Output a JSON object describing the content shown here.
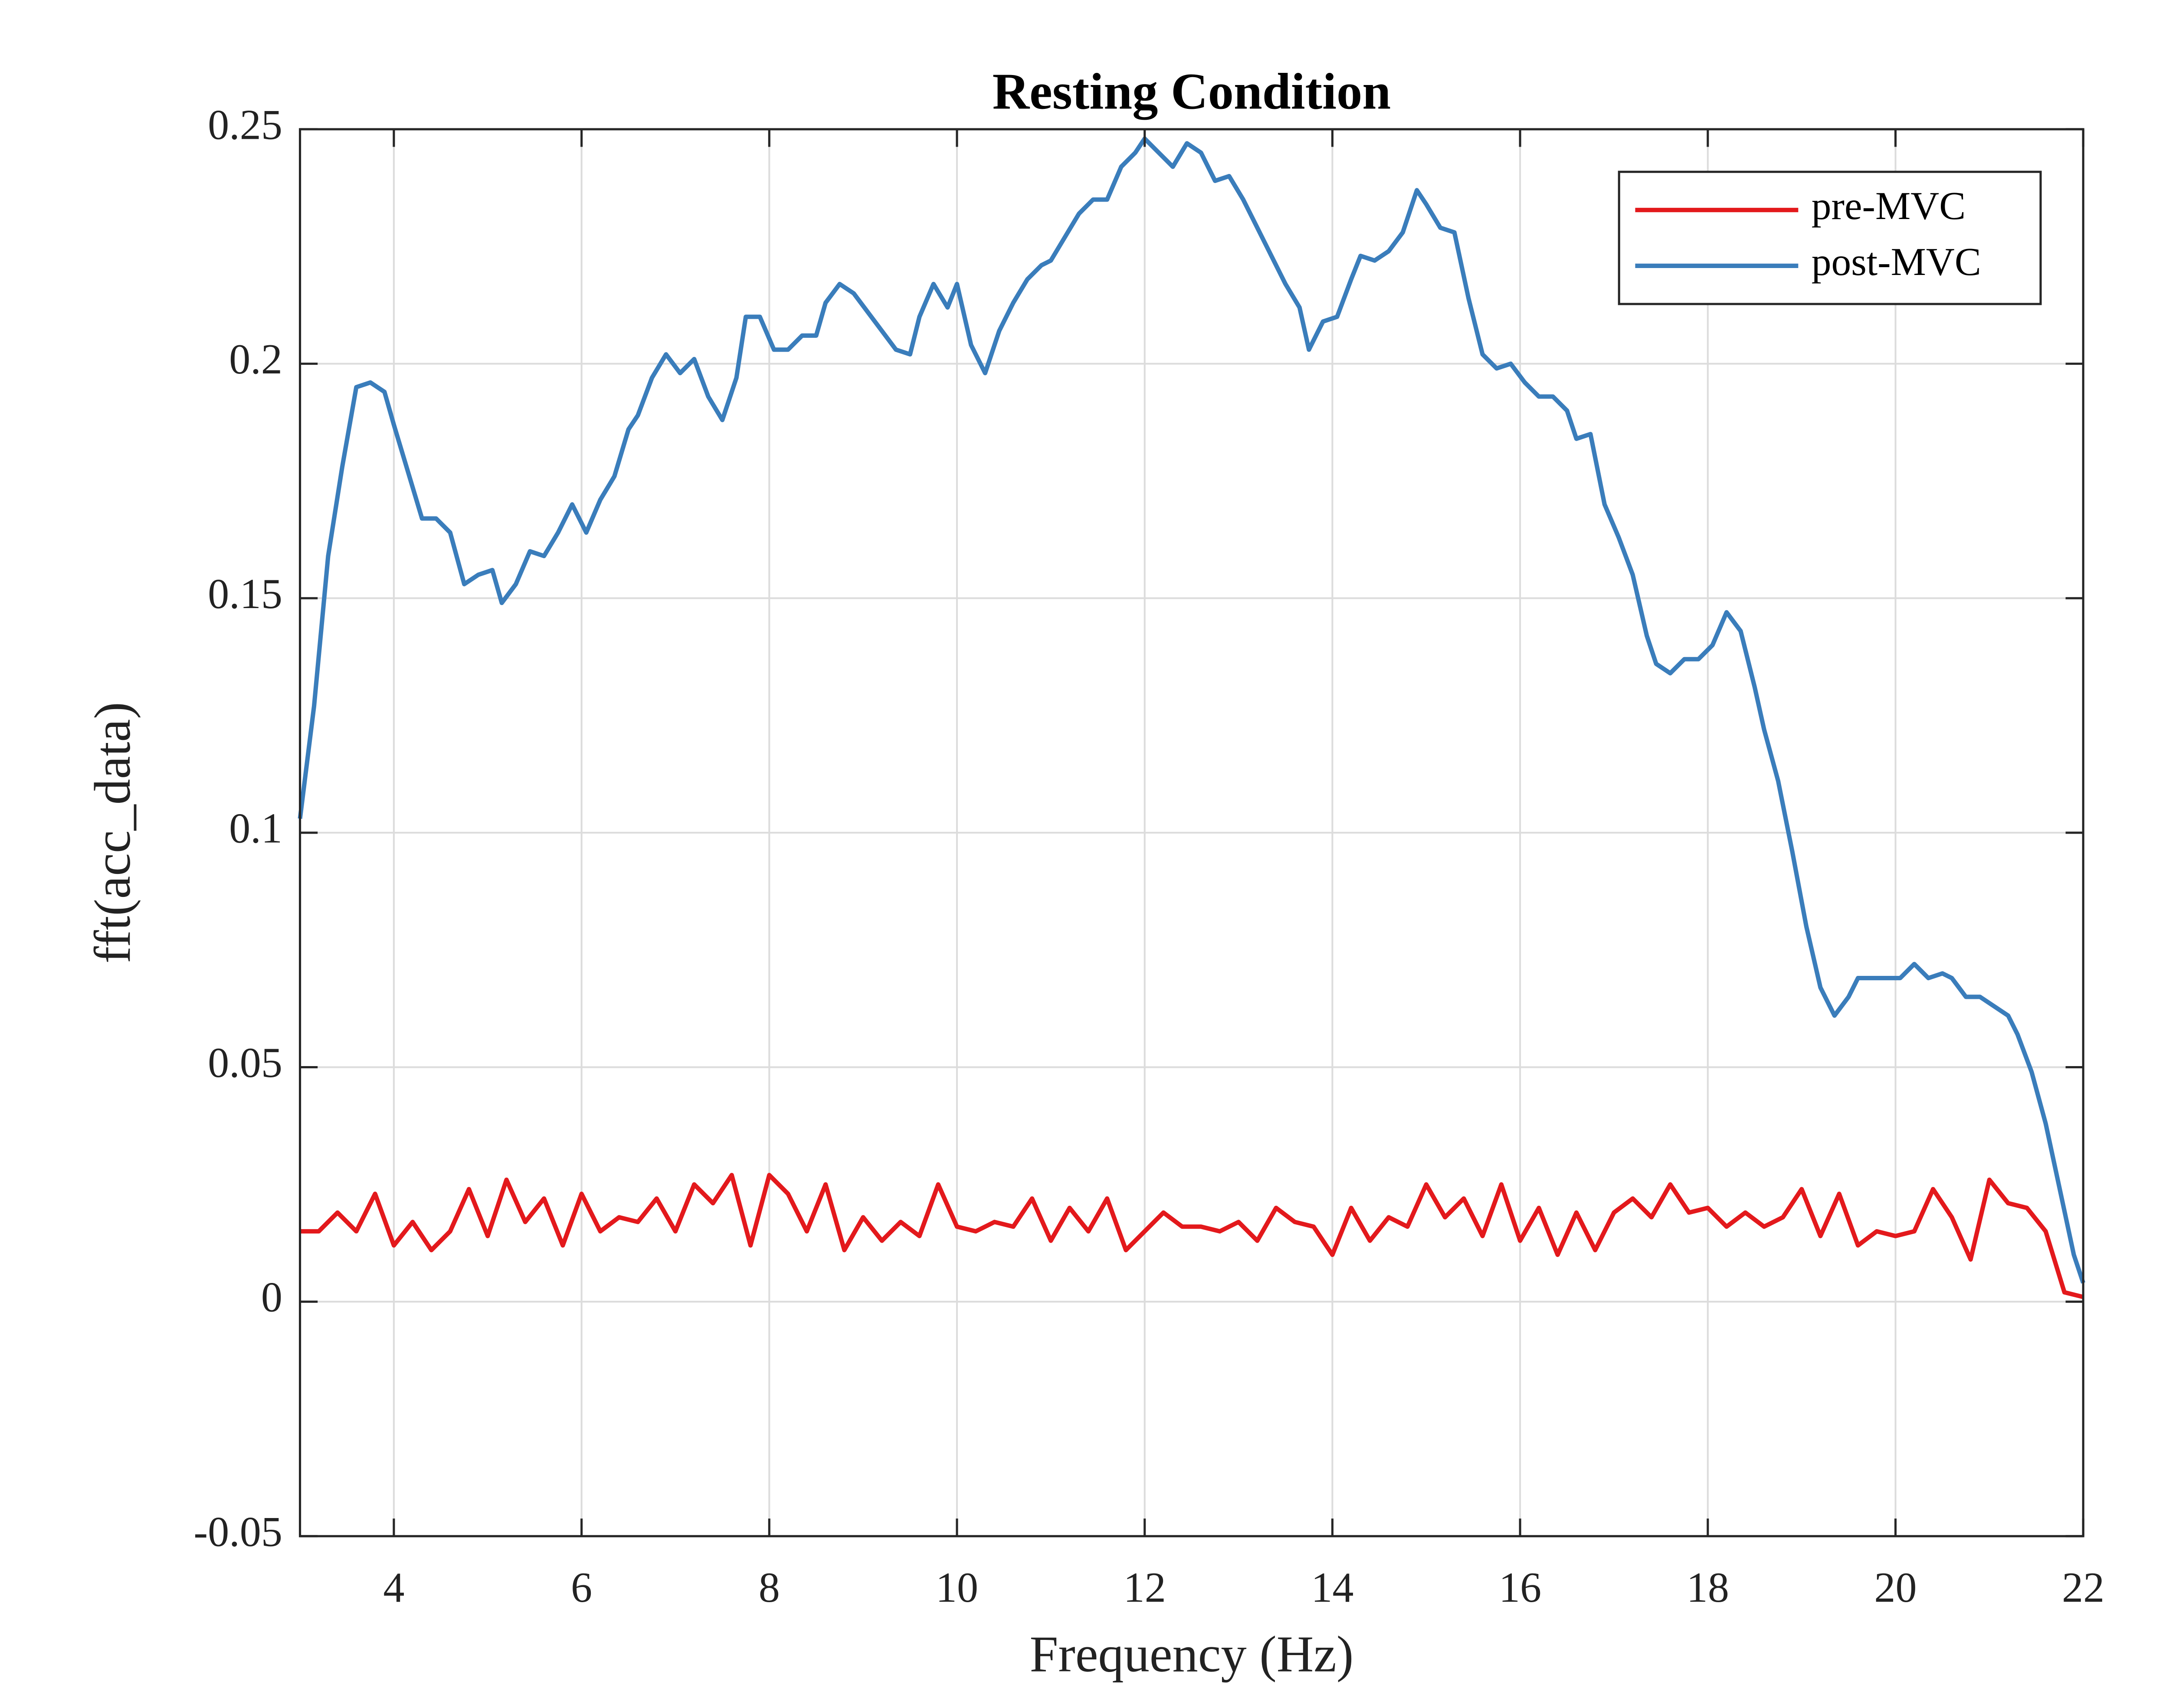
{
  "chart_data": {
    "type": "line",
    "title": "Resting Condition",
    "x_label": "Frequency (Hz)",
    "y_label": "fft(acc_data)",
    "xlim": [
      3,
      22
    ],
    "ylim": [
      -0.05,
      0.25
    ],
    "xticks": [
      4,
      6,
      8,
      10,
      12,
      14,
      16,
      18,
      20,
      22
    ],
    "yticks": [
      -0.05,
      0,
      0.05,
      0.1,
      0.15,
      0.2,
      0.25
    ],
    "grid": true,
    "legend": "top-right",
    "series": [
      {
        "name": "pre-MVC",
        "color": "#e3191c",
        "x": [
          3.0,
          3.2,
          3.4,
          3.6,
          3.8,
          4.0,
          4.2,
          4.4,
          4.6,
          4.8,
          5.0,
          5.2,
          5.4,
          5.6,
          5.8,
          6.0,
          6.2,
          6.4,
          6.6,
          6.8,
          7.0,
          7.2,
          7.4,
          7.6,
          7.8,
          8.0,
          8.2,
          8.4,
          8.6,
          8.8,
          9.0,
          9.2,
          9.4,
          9.6,
          9.8,
          10.0,
          10.2,
          10.4,
          10.6,
          10.8,
          11.0,
          11.2,
          11.4,
          11.6,
          11.8,
          12.0,
          12.2,
          12.4,
          12.6,
          12.8,
          13.0,
          13.2,
          13.4,
          13.6,
          13.8,
          14.0,
          14.2,
          14.4,
          14.6,
          14.8,
          15.0,
          15.2,
          15.4,
          15.6,
          15.8,
          16.0,
          16.2,
          16.4,
          16.6,
          16.8,
          17.0,
          17.2,
          17.4,
          17.6,
          17.8,
          18.0,
          18.2,
          18.4,
          18.6,
          18.8,
          19.0,
          19.2,
          19.4,
          19.6,
          19.8,
          20.0,
          20.2,
          20.4,
          20.6,
          20.8,
          21.0,
          21.2,
          21.4,
          21.6,
          21.8,
          22.0
        ],
        "values": [
          0.015,
          0.015,
          0.019,
          0.015,
          0.023,
          0.012,
          0.017,
          0.011,
          0.015,
          0.024,
          0.014,
          0.026,
          0.017,
          0.022,
          0.012,
          0.023,
          0.015,
          0.018,
          0.017,
          0.022,
          0.015,
          0.025,
          0.021,
          0.027,
          0.012,
          0.027,
          0.023,
          0.015,
          0.025,
          0.011,
          0.018,
          0.013,
          0.017,
          0.014,
          0.025,
          0.016,
          0.015,
          0.017,
          0.016,
          0.022,
          0.013,
          0.02,
          0.015,
          0.022,
          0.011,
          0.015,
          0.019,
          0.016,
          0.016,
          0.015,
          0.017,
          0.013,
          0.02,
          0.017,
          0.016,
          0.01,
          0.02,
          0.013,
          0.018,
          0.016,
          0.025,
          0.018,
          0.022,
          0.014,
          0.025,
          0.013,
          0.02,
          0.01,
          0.019,
          0.011,
          0.019,
          0.022,
          0.018,
          0.025,
          0.019,
          0.02,
          0.016,
          0.019,
          0.016,
          0.018,
          0.024,
          0.014,
          0.023,
          0.012,
          0.015,
          0.014,
          0.015,
          0.024,
          0.018,
          0.009,
          0.026,
          0.021,
          0.02,
          0.015,
          0.002,
          0.001
        ]
      },
      {
        "name": "post-MVC",
        "color": "#3a7dbb",
        "x": [
          3.0,
          3.15,
          3.3,
          3.45,
          3.6,
          3.75,
          3.9,
          4.0,
          4.15,
          4.3,
          4.45,
          4.6,
          4.75,
          4.9,
          5.05,
          5.15,
          5.3,
          5.45,
          5.6,
          5.75,
          5.9,
          6.05,
          6.2,
          6.35,
          6.5,
          6.6,
          6.75,
          6.9,
          7.05,
          7.2,
          7.35,
          7.5,
          7.65,
          7.75,
          7.9,
          8.05,
          8.2,
          8.35,
          8.5,
          8.6,
          8.75,
          8.9,
          9.05,
          9.2,
          9.35,
          9.5,
          9.6,
          9.75,
          9.9,
          10.0,
          10.15,
          10.3,
          10.45,
          10.6,
          10.75,
          10.9,
          11.0,
          11.15,
          11.3,
          11.45,
          11.6,
          11.75,
          11.9,
          12.0,
          12.15,
          12.3,
          12.45,
          12.6,
          12.75,
          12.9,
          13.05,
          13.2,
          13.35,
          13.5,
          13.65,
          13.75,
          13.9,
          14.05,
          14.2,
          14.3,
          14.45,
          14.6,
          14.75,
          14.9,
          15.0,
          15.15,
          15.3,
          15.45,
          15.6,
          15.75,
          15.9,
          16.05,
          16.2,
          16.35,
          16.5,
          16.6,
          16.75,
          16.9,
          17.05,
          17.2,
          17.35,
          17.45,
          17.6,
          17.75,
          17.9,
          18.05,
          18.2,
          18.35,
          18.5,
          18.6,
          18.75,
          18.9,
          19.05,
          19.2,
          19.35,
          19.5,
          19.6,
          19.75,
          20.05,
          20.2,
          20.35,
          20.5,
          20.6,
          20.75,
          20.9,
          21.05,
          21.2,
          21.3,
          21.45,
          21.6,
          21.75,
          21.9,
          22.0
        ],
        "values": [
          0.103,
          0.127,
          0.159,
          0.178,
          0.195,
          0.196,
          0.194,
          0.187,
          0.177,
          0.167,
          0.167,
          0.164,
          0.153,
          0.155,
          0.156,
          0.149,
          0.153,
          0.16,
          0.159,
          0.164,
          0.17,
          0.164,
          0.171,
          0.176,
          0.186,
          0.189,
          0.197,
          0.202,
          0.198,
          0.201,
          0.193,
          0.188,
          0.197,
          0.21,
          0.21,
          0.203,
          0.203,
          0.206,
          0.206,
          0.213,
          0.217,
          0.215,
          0.211,
          0.207,
          0.203,
          0.202,
          0.21,
          0.217,
          0.212,
          0.217,
          0.204,
          0.198,
          0.207,
          0.213,
          0.218,
          0.221,
          0.222,
          0.227,
          0.232,
          0.235,
          0.235,
          0.242,
          0.245,
          0.248,
          0.245,
          0.242,
          0.247,
          0.245,
          0.239,
          0.24,
          0.235,
          0.229,
          0.223,
          0.217,
          0.212,
          0.203,
          0.209,
          0.21,
          0.218,
          0.223,
          0.222,
          0.224,
          0.228,
          0.237,
          0.234,
          0.229,
          0.228,
          0.214,
          0.202,
          0.199,
          0.2,
          0.196,
          0.193,
          0.193,
          0.19,
          0.184,
          0.185,
          0.17,
          0.163,
          0.155,
          0.142,
          0.136,
          0.134,
          0.137,
          0.137,
          0.14,
          0.147,
          0.143,
          0.131,
          0.122,
          0.111,
          0.096,
          0.08,
          0.067,
          0.061,
          0.065,
          0.069,
          0.069,
          0.069,
          0.072,
          0.069,
          0.07,
          0.069,
          0.065,
          0.065,
          0.063,
          0.061,
          0.057,
          0.049,
          0.038,
          0.024,
          0.01,
          0.004
        ]
      }
    ]
  }
}
